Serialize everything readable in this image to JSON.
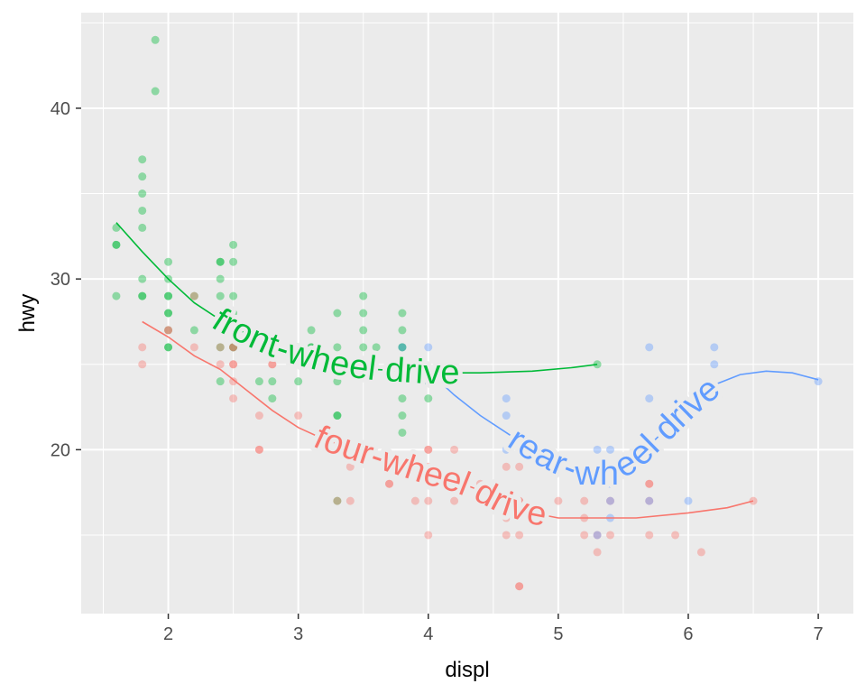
{
  "chart_data": {
    "type": "scatter",
    "title": "",
    "xlabel": "displ",
    "ylabel": "hwy",
    "xlim": [
      1.33,
      7.27
    ],
    "ylim": [
      10.4,
      45.6
    ],
    "x_ticks": [
      2,
      3,
      4,
      5,
      6,
      7
    ],
    "y_ticks": [
      20,
      30,
      40
    ],
    "grid": true,
    "legend": "none",
    "colors": {
      "panel_bg": "#ebebeb",
      "grid": "#ffffff",
      "tick": "#333333"
    },
    "series": [
      {
        "label": "front-wheel drive",
        "color": "#00ba38",
        "points": [
          [
            1.6,
            33
          ],
          [
            1.6,
            32
          ],
          [
            1.6,
            32
          ],
          [
            1.6,
            29
          ],
          [
            1.8,
            37
          ],
          [
            1.8,
            36
          ],
          [
            1.8,
            35
          ],
          [
            1.8,
            34
          ],
          [
            1.8,
            33
          ],
          [
            1.8,
            30
          ],
          [
            1.8,
            29
          ],
          [
            1.8,
            29
          ],
          [
            1.9,
            44
          ],
          [
            1.9,
            41
          ],
          [
            2.0,
            31
          ],
          [
            2.0,
            30
          ],
          [
            2.0,
            29
          ],
          [
            2.0,
            29
          ],
          [
            2.0,
            28
          ],
          [
            2.0,
            28
          ],
          [
            2.0,
            27
          ],
          [
            2.0,
            26
          ],
          [
            2.0,
            26
          ],
          [
            2.2,
            29
          ],
          [
            2.2,
            27
          ],
          [
            2.4,
            31
          ],
          [
            2.4,
            31
          ],
          [
            2.4,
            30
          ],
          [
            2.4,
            29
          ],
          [
            2.4,
            27
          ],
          [
            2.4,
            27
          ],
          [
            2.4,
            26
          ],
          [
            2.4,
            24
          ],
          [
            2.5,
            32
          ],
          [
            2.5,
            31
          ],
          [
            2.5,
            29
          ],
          [
            2.5,
            28
          ],
          [
            2.5,
            27
          ],
          [
            2.5,
            26
          ],
          [
            2.5,
            26
          ],
          [
            2.7,
            24
          ],
          [
            2.8,
            26
          ],
          [
            2.8,
            24
          ],
          [
            2.8,
            23
          ],
          [
            3.0,
            26
          ],
          [
            3.0,
            24
          ],
          [
            3.1,
            27
          ],
          [
            3.1,
            26
          ],
          [
            3.1,
            26
          ],
          [
            3.3,
            28
          ],
          [
            3.3,
            26
          ],
          [
            3.3,
            24
          ],
          [
            3.3,
            22
          ],
          [
            3.3,
            22
          ],
          [
            3.3,
            17
          ],
          [
            3.5,
            29
          ],
          [
            3.5,
            28
          ],
          [
            3.5,
            27
          ],
          [
            3.5,
            26
          ],
          [
            3.6,
            26
          ],
          [
            3.8,
            28
          ],
          [
            3.8,
            27
          ],
          [
            3.8,
            26
          ],
          [
            3.8,
            26
          ],
          [
            3.8,
            24
          ],
          [
            3.8,
            23
          ],
          [
            3.8,
            22
          ],
          [
            3.8,
            21
          ],
          [
            3.9,
            25
          ],
          [
            4.0,
            24
          ],
          [
            4.0,
            23
          ],
          [
            5.3,
            25
          ]
        ],
        "smooth": [
          [
            1.6,
            33.3
          ],
          [
            1.8,
            31.6
          ],
          [
            2.0,
            30.0
          ],
          [
            2.2,
            28.6
          ],
          [
            2.4,
            27.6
          ],
          [
            2.6,
            26.8
          ],
          [
            2.8,
            26.1
          ],
          [
            3.0,
            25.6
          ],
          [
            3.2,
            25.2
          ],
          [
            3.4,
            24.9
          ],
          [
            3.6,
            24.7
          ],
          [
            3.8,
            24.6
          ],
          [
            4.0,
            24.5
          ],
          [
            4.4,
            24.5
          ],
          [
            4.8,
            24.6
          ],
          [
            5.1,
            24.8
          ],
          [
            5.3,
            25.0
          ]
        ]
      },
      {
        "label": "four-wheel drive",
        "color": "#f8766d",
        "points": [
          [
            1.8,
            26
          ],
          [
            1.8,
            25
          ],
          [
            2.0,
            27
          ],
          [
            2.0,
            27
          ],
          [
            2.2,
            26
          ],
          [
            2.2,
            29
          ],
          [
            2.4,
            25
          ],
          [
            2.4,
            26
          ],
          [
            2.5,
            27
          ],
          [
            2.5,
            26
          ],
          [
            2.5,
            26
          ],
          [
            2.5,
            25
          ],
          [
            2.5,
            25
          ],
          [
            2.5,
            24
          ],
          [
            2.5,
            23
          ],
          [
            2.7,
            22
          ],
          [
            2.7,
            20
          ],
          [
            2.7,
            20
          ],
          [
            2.8,
            25
          ],
          [
            2.8,
            25
          ],
          [
            3.0,
            22
          ],
          [
            3.3,
            17
          ],
          [
            3.4,
            19
          ],
          [
            3.4,
            17
          ],
          [
            3.7,
            18
          ],
          [
            3.7,
            18
          ],
          [
            3.9,
            17
          ],
          [
            4.0,
            20
          ],
          [
            4.0,
            20
          ],
          [
            4.0,
            19
          ],
          [
            4.0,
            17
          ],
          [
            4.0,
            15
          ],
          [
            4.2,
            17
          ],
          [
            4.2,
            20
          ],
          [
            4.4,
            18
          ],
          [
            4.6,
            19
          ],
          [
            4.6,
            17
          ],
          [
            4.6,
            15
          ],
          [
            4.6,
            16
          ],
          [
            4.7,
            19
          ],
          [
            4.7,
            17
          ],
          [
            4.7,
            17
          ],
          [
            4.7,
            15
          ],
          [
            4.7,
            12
          ],
          [
            4.7,
            12
          ],
          [
            5.0,
            17
          ],
          [
            5.2,
            17
          ],
          [
            5.2,
            15
          ],
          [
            5.2,
            16
          ],
          [
            5.3,
            15
          ],
          [
            5.3,
            14
          ],
          [
            5.4,
            17
          ],
          [
            5.4,
            15
          ],
          [
            5.7,
            18
          ],
          [
            5.7,
            18
          ],
          [
            5.7,
            15
          ],
          [
            5.7,
            17
          ],
          [
            5.9,
            15
          ],
          [
            6.1,
            14
          ],
          [
            6.5,
            17
          ]
        ],
        "smooth": [
          [
            1.8,
            27.5
          ],
          [
            2.0,
            26.6
          ],
          [
            2.2,
            25.5
          ],
          [
            2.4,
            24.7
          ],
          [
            2.6,
            23.5
          ],
          [
            2.8,
            22.3
          ],
          [
            3.0,
            21.3
          ],
          [
            3.2,
            20.6
          ],
          [
            3.4,
            20.1
          ],
          [
            3.6,
            19.6
          ],
          [
            3.8,
            19.1
          ],
          [
            4.0,
            18.6
          ],
          [
            4.2,
            18.2
          ],
          [
            4.4,
            17.6
          ],
          [
            4.6,
            16.8
          ],
          [
            4.8,
            16.3
          ],
          [
            5.0,
            16.0
          ],
          [
            5.2,
            16.0
          ],
          [
            5.6,
            16.0
          ],
          [
            6.0,
            16.3
          ],
          [
            6.3,
            16.6
          ],
          [
            6.5,
            17.0
          ]
        ]
      },
      {
        "label": "rear-wheel drive",
        "color": "#619cff",
        "points": [
          [
            3.8,
            26
          ],
          [
            4.0,
            26
          ],
          [
            4.0,
            24
          ],
          [
            4.6,
            23
          ],
          [
            4.6,
            22
          ],
          [
            4.6,
            20
          ],
          [
            4.6,
            17
          ],
          [
            5.3,
            20
          ],
          [
            5.3,
            19
          ],
          [
            5.3,
            15
          ],
          [
            5.4,
            20
          ],
          [
            5.4,
            19
          ],
          [
            5.4,
            18
          ],
          [
            5.4,
            17
          ],
          [
            5.4,
            16
          ],
          [
            5.7,
            26
          ],
          [
            5.7,
            23
          ],
          [
            5.7,
            17
          ],
          [
            6.0,
            17
          ],
          [
            6.2,
            26
          ],
          [
            6.2,
            25
          ],
          [
            7.0,
            24
          ]
        ],
        "smooth": [
          [
            4.0,
            24.6
          ],
          [
            4.2,
            23.2
          ],
          [
            4.4,
            22.0
          ],
          [
            4.6,
            21.0
          ],
          [
            4.8,
            20.0
          ],
          [
            5.0,
            19.2
          ],
          [
            5.2,
            18.6
          ],
          [
            5.4,
            18.6
          ],
          [
            5.6,
            19.5
          ],
          [
            5.8,
            21.0
          ],
          [
            6.0,
            22.5
          ],
          [
            6.2,
            23.8
          ],
          [
            6.4,
            24.4
          ],
          [
            6.6,
            24.6
          ],
          [
            6.8,
            24.5
          ],
          [
            7.0,
            24.1
          ]
        ]
      }
    ]
  }
}
